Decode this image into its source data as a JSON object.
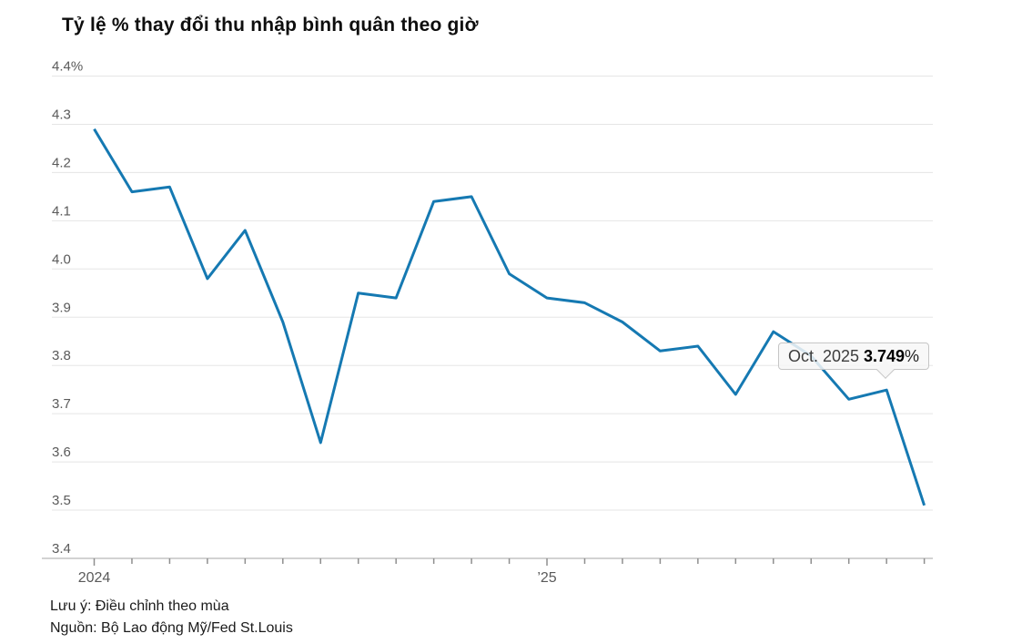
{
  "title": "Tỷ lệ % thay đổi thu nhập bình quân theo giờ",
  "tooltip": {
    "label": "Oct. 2025",
    "value": "3.749",
    "suffix": "%"
  },
  "notes": {
    "note": "Lưu ý: Điều chỉnh theo mùa",
    "source": "Nguồn: Bộ Lao động Mỹ/Fed St.Louis"
  },
  "colors": {
    "line": "#1579b2",
    "grid": "#e5e5e5",
    "axis": "#c4c4c4",
    "tick": "#8f8f8f",
    "axis_text": "#5a5a5a"
  },
  "chart_data": {
    "type": "line",
    "title": "Tỷ lệ % thay đổi thu nhập bình quân theo giờ",
    "x": [
      "Jan 2024",
      "Feb 2024",
      "Mar 2024",
      "Apr 2024",
      "May 2024",
      "Jun 2024",
      "Jul 2024",
      "Aug 2024",
      "Sep 2024",
      "Oct 2024",
      "Nov 2024",
      "Dec 2024",
      "Jan 2025",
      "Feb 2025",
      "Mar 2025",
      "Apr 2025",
      "May 2025",
      "Jun 2025",
      "Jul 2025",
      "Aug 2025",
      "Sep 2025",
      "Oct 2025",
      "Nov 2025"
    ],
    "values": [
      4.29,
      4.16,
      4.17,
      3.98,
      4.08,
      3.89,
      3.64,
      3.95,
      3.94,
      4.14,
      4.15,
      3.99,
      3.94,
      3.93,
      3.89,
      3.83,
      3.84,
      3.74,
      3.87,
      3.82,
      3.73,
      3.749,
      3.51
    ],
    "ylim": [
      3.4,
      4.4
    ],
    "yticks": [
      {
        "value": 4.4,
        "label": "4.4%"
      },
      {
        "value": 4.3,
        "label": "4.3"
      },
      {
        "value": 4.2,
        "label": "4.2"
      },
      {
        "value": 4.1,
        "label": "4.1"
      },
      {
        "value": 4.0,
        "label": "4.0"
      },
      {
        "value": 3.9,
        "label": "3.9"
      },
      {
        "value": 3.8,
        "label": "3.8"
      },
      {
        "value": 3.7,
        "label": "3.7"
      },
      {
        "value": 3.6,
        "label": "3.6"
      },
      {
        "value": 3.5,
        "label": "3.5"
      },
      {
        "value": 3.4,
        "label": "3.4"
      }
    ],
    "xticks": [
      {
        "index": 0,
        "label": "2024"
      },
      {
        "index": 12,
        "label": "’25"
      }
    ],
    "minor_xticks": "monthly (one per data point)",
    "grid": true,
    "legend": false,
    "annotation": {
      "target_x": "Oct 2025",
      "target_value": 3.749,
      "text": "Oct. 2025 3.749%"
    },
    "line_color": "#1579b2"
  }
}
